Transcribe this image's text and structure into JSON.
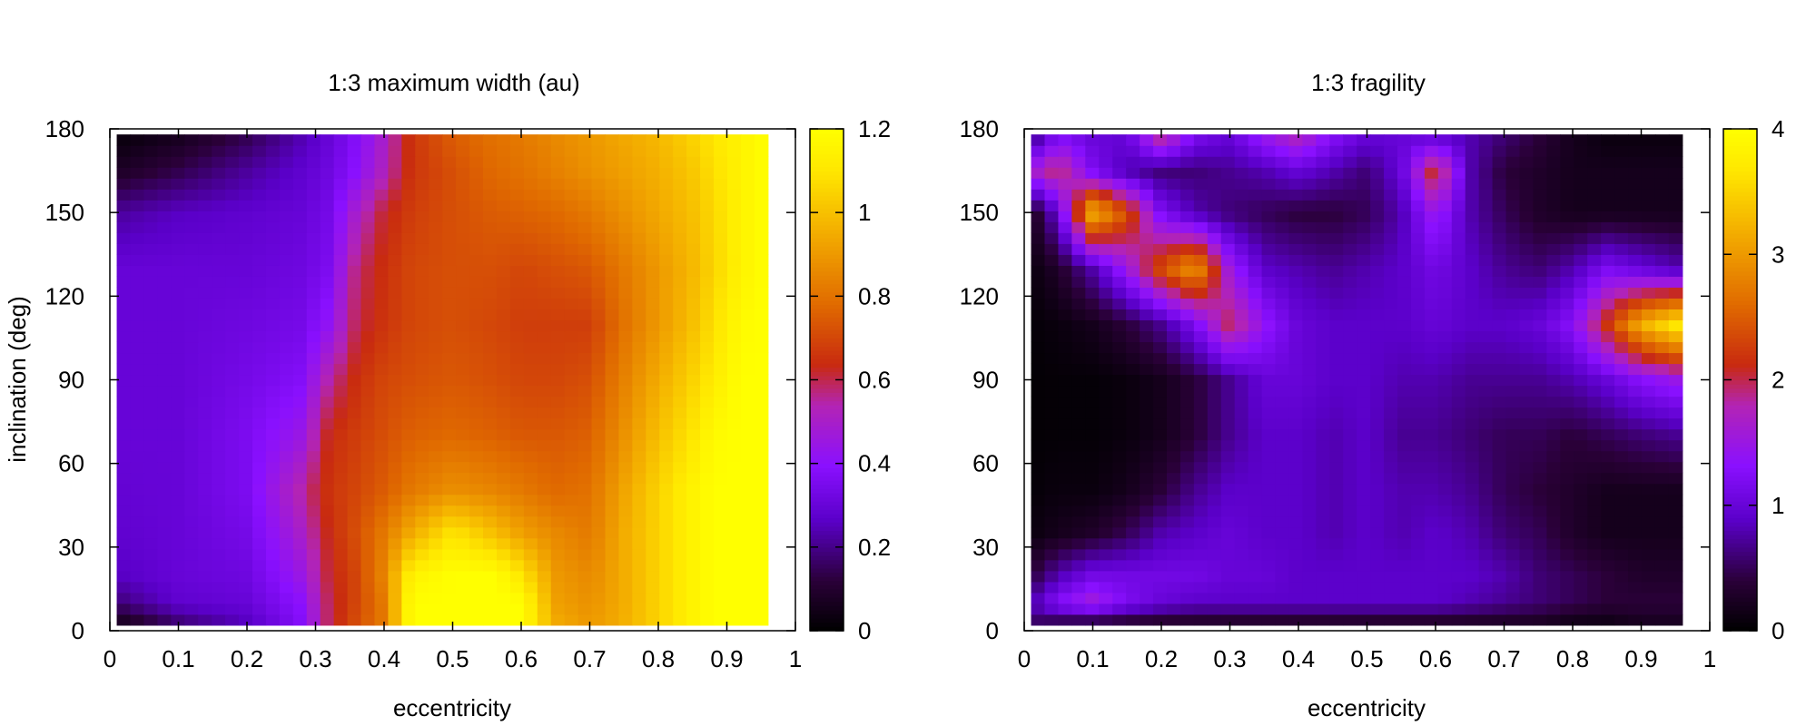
{
  "figure": {
    "background": "#ffffff"
  },
  "colormap": {
    "name": "gnuplot-pm3d-heat",
    "stops": [
      [
        0.0,
        "#000000"
      ],
      [
        0.1,
        "#2a0038"
      ],
      [
        0.22,
        "#5a00c8"
      ],
      [
        0.33,
        "#8a10ff"
      ],
      [
        0.45,
        "#b324b4"
      ],
      [
        0.53,
        "#c82a10"
      ],
      [
        0.65,
        "#e06a00"
      ],
      [
        0.8,
        "#f4b000"
      ],
      [
        0.92,
        "#ffe800"
      ],
      [
        1.0,
        "#ffff00"
      ]
    ]
  },
  "chart_data": [
    {
      "type": "heatmap",
      "title": "1:3 maximum width (au)",
      "xlabel": "eccentricity",
      "ylabel": "inclination (deg)",
      "xlim": [
        0,
        1
      ],
      "ylim": [
        0,
        180
      ],
      "xticks": [
        "0",
        "0.1",
        "0.2",
        "0.3",
        "0.4",
        "0.5",
        "0.6",
        "0.7",
        "0.8",
        "0.9",
        "1"
      ],
      "yticks": [
        "0",
        "30",
        "60",
        "90",
        "120",
        "150",
        "180"
      ],
      "cbar_range": [
        0,
        1.2
      ],
      "cbar_ticks": [
        "0",
        "0.2",
        "0.4",
        "0.6",
        "0.8",
        "1",
        "1.2"
      ],
      "x_range": [
        0.01,
        0.96
      ],
      "y_range": [
        2,
        178
      ],
      "nx": 48,
      "ny": 45,
      "x_nodes": [
        0.01,
        0.1,
        0.2,
        0.28,
        0.32,
        0.36,
        0.4,
        0.44,
        0.5,
        0.56,
        0.6,
        0.65,
        0.7,
        0.75,
        0.8,
        0.85,
        0.88,
        0.92,
        0.96
      ],
      "y_nodes": [
        2,
        10,
        20,
        35,
        50,
        70,
        90,
        110,
        130,
        150,
        165,
        178
      ],
      "z_grid": [
        [
          0.04,
          0.16,
          0.25,
          0.38,
          0.6,
          0.72,
          0.82,
          1.2,
          1.2,
          1.2,
          1.2,
          0.95,
          0.9,
          0.96,
          1.05,
          1.15,
          1.2,
          1.2,
          1.2
        ],
        [
          0.18,
          0.28,
          0.3,
          0.4,
          0.6,
          0.7,
          0.82,
          1.2,
          1.2,
          1.2,
          1.2,
          0.92,
          0.88,
          0.95,
          1.05,
          1.15,
          1.2,
          1.2,
          1.2
        ],
        [
          0.26,
          0.3,
          0.32,
          0.45,
          0.62,
          0.7,
          0.85,
          1.15,
          1.2,
          1.2,
          1.1,
          0.9,
          0.86,
          0.95,
          1.05,
          1.15,
          1.2,
          1.2,
          1.2
        ],
        [
          0.28,
          0.3,
          0.34,
          0.5,
          0.64,
          0.72,
          0.82,
          0.95,
          1.1,
          1.0,
          0.92,
          0.86,
          0.82,
          0.95,
          1.05,
          1.15,
          1.2,
          1.2,
          1.2
        ],
        [
          0.29,
          0.3,
          0.36,
          0.55,
          0.66,
          0.7,
          0.75,
          0.82,
          0.88,
          0.85,
          0.82,
          0.78,
          0.8,
          0.93,
          1.05,
          1.15,
          1.2,
          1.2,
          1.2
        ],
        [
          0.3,
          0.3,
          0.36,
          0.45,
          0.64,
          0.68,
          0.72,
          0.76,
          0.78,
          0.76,
          0.74,
          0.74,
          0.76,
          0.88,
          1.0,
          1.1,
          1.18,
          1.2,
          1.2
        ],
        [
          0.3,
          0.3,
          0.34,
          0.38,
          0.55,
          0.65,
          0.7,
          0.72,
          0.74,
          0.72,
          0.7,
          0.7,
          0.72,
          0.84,
          0.95,
          1.05,
          1.12,
          1.2,
          1.2
        ],
        [
          0.3,
          0.3,
          0.32,
          0.34,
          0.42,
          0.6,
          0.66,
          0.7,
          0.72,
          0.7,
          0.68,
          0.68,
          0.68,
          0.8,
          0.9,
          1.0,
          1.08,
          1.18,
          1.2
        ],
        [
          0.3,
          0.3,
          0.3,
          0.32,
          0.36,
          0.58,
          0.65,
          0.7,
          0.72,
          0.72,
          0.7,
          0.72,
          0.74,
          0.82,
          0.9,
          0.98,
          1.05,
          1.15,
          1.2
        ],
        [
          0.22,
          0.26,
          0.28,
          0.3,
          0.34,
          0.5,
          0.62,
          0.68,
          0.72,
          0.75,
          0.76,
          0.78,
          0.82,
          0.88,
          0.94,
          1.0,
          1.06,
          1.15,
          1.2
        ],
        [
          0.08,
          0.14,
          0.22,
          0.28,
          0.32,
          0.4,
          0.52,
          0.66,
          0.72,
          0.78,
          0.8,
          0.84,
          0.88,
          0.92,
          0.96,
          1.02,
          1.08,
          1.15,
          1.2
        ],
        [
          0.02,
          0.06,
          0.14,
          0.24,
          0.3,
          0.38,
          0.5,
          0.66,
          0.75,
          0.8,
          0.82,
          0.86,
          0.9,
          0.94,
          0.98,
          1.05,
          1.1,
          1.15,
          1.2
        ]
      ]
    },
    {
      "type": "heatmap",
      "title": "1:3 fragility",
      "xlabel": "eccentricity",
      "ylabel": "",
      "xlim": [
        0,
        1
      ],
      "ylim": [
        0,
        180
      ],
      "xticks": [
        "0",
        "0.1",
        "0.2",
        "0.3",
        "0.4",
        "0.5",
        "0.6",
        "0.7",
        "0.8",
        "0.9",
        "1"
      ],
      "yticks": [
        "0",
        "30",
        "60",
        "90",
        "120",
        "150",
        "180"
      ],
      "cbar_range": [
        0,
        4
      ],
      "cbar_ticks": [
        "0",
        "1",
        "2",
        "3",
        "4"
      ],
      "x_range": [
        0.01,
        0.96
      ],
      "y_range": [
        2,
        178
      ],
      "nx": 48,
      "ny": 45,
      "x_nodes": [
        0.01,
        0.05,
        0.1,
        0.15,
        0.2,
        0.25,
        0.3,
        0.35,
        0.4,
        0.45,
        0.5,
        0.55,
        0.6,
        0.65,
        0.7,
        0.75,
        0.8,
        0.85,
        0.9,
        0.96
      ],
      "y_nodes": [
        2,
        10,
        20,
        35,
        50,
        70,
        90,
        110,
        130,
        150,
        165,
        178
      ],
      "z_grid": [
        [
          0.5,
          0.3,
          0.2,
          0.2,
          0.2,
          0.2,
          0.2,
          0.2,
          0.2,
          0.2,
          0.2,
          0.2,
          0.2,
          0.2,
          0.2,
          0.2,
          0.1,
          0.1,
          0.2,
          0.2
        ],
        [
          0.8,
          1.3,
          1.6,
          1.2,
          1.0,
          0.9,
          0.9,
          0.9,
          0.9,
          0.9,
          0.9,
          0.9,
          0.9,
          0.8,
          0.7,
          0.6,
          0.5,
          0.4,
          0.4,
          0.4
        ],
        [
          0.4,
          0.8,
          1.1,
          1.1,
          1.1,
          1.1,
          1.0,
          1.0,
          0.9,
          0.9,
          0.9,
          0.9,
          0.9,
          0.9,
          0.8,
          0.6,
          0.5,
          0.4,
          0.3,
          0.3
        ],
        [
          0.1,
          0.2,
          0.3,
          0.5,
          0.8,
          0.9,
          1.0,
          0.9,
          0.9,
          0.8,
          0.9,
          0.8,
          0.9,
          0.8,
          0.6,
          0.5,
          0.3,
          0.2,
          0.2,
          0.2
        ],
        [
          0.05,
          0.1,
          0.1,
          0.2,
          0.4,
          0.7,
          0.9,
          0.9,
          0.9,
          0.8,
          0.9,
          0.8,
          0.8,
          0.7,
          0.5,
          0.4,
          0.3,
          0.2,
          0.2,
          0.2
        ],
        [
          0.03,
          0.05,
          0.05,
          0.1,
          0.2,
          0.4,
          0.7,
          0.9,
          0.9,
          0.8,
          0.9,
          0.7,
          0.7,
          0.6,
          0.5,
          0.5,
          0.4,
          0.5,
          0.6,
          0.7
        ],
        [
          0.03,
          0.05,
          0.05,
          0.1,
          0.2,
          0.4,
          0.7,
          1.0,
          1.0,
          0.9,
          0.9,
          0.8,
          0.8,
          0.7,
          0.7,
          0.7,
          0.8,
          1.0,
          1.3,
          1.5
        ],
        [
          0.05,
          0.1,
          0.2,
          0.4,
          0.7,
          1.2,
          2.0,
          1.4,
          1.0,
          0.9,
          0.9,
          0.9,
          1.0,
          0.9,
          0.9,
          1.0,
          1.3,
          2.2,
          3.2,
          3.8
        ],
        [
          0.1,
          0.3,
          0.8,
          1.5,
          2.4,
          3.0,
          1.5,
          0.9,
          0.8,
          0.7,
          0.8,
          0.9,
          1.1,
          0.9,
          0.7,
          0.6,
          0.8,
          1.2,
          1.0,
          0.8
        ],
        [
          0.2,
          1.0,
          3.2,
          2.4,
          1.2,
          0.8,
          0.6,
          0.5,
          0.4,
          0.4,
          0.5,
          0.8,
          1.5,
          0.8,
          0.5,
          0.3,
          0.2,
          0.2,
          0.2,
          0.2
        ],
        [
          1.6,
          2.0,
          1.2,
          0.8,
          0.6,
          0.6,
          0.7,
          0.8,
          1.0,
          0.8,
          0.6,
          1.0,
          2.2,
          0.8,
          0.4,
          0.3,
          0.2,
          0.2,
          0.2,
          0.2
        ],
        [
          0.5,
          1.2,
          1.0,
          1.0,
          2.0,
          1.2,
          1.0,
          1.5,
          1.8,
          1.3,
          1.0,
          1.0,
          0.9,
          0.8,
          0.6,
          0.4,
          0.2,
          0.1,
          0.1,
          0.1
        ]
      ]
    }
  ]
}
